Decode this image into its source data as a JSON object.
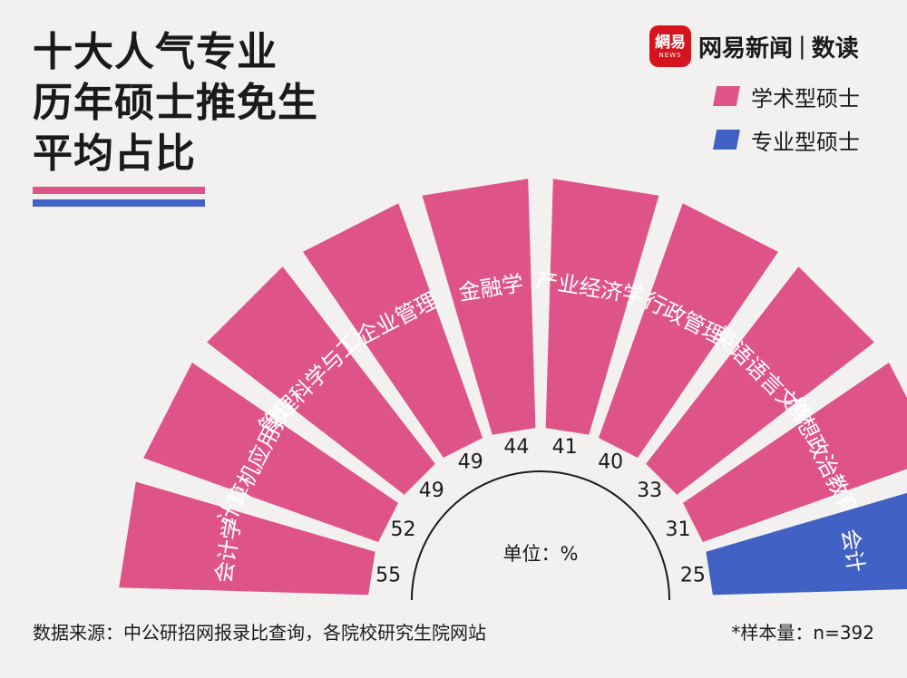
{
  "title_lines": [
    "十大人气专业",
    "历年硕士推免生",
    "平均占比"
  ],
  "brand": {
    "mark_main": "網易",
    "mark_sub": "NEWS",
    "name": "网易新闻",
    "separator": "|",
    "column": "数读"
  },
  "colors": {
    "academic": "#de5489",
    "professional": "#4161c4",
    "background": "#f2f1ef",
    "text": "#1a1a1a"
  },
  "legend": [
    {
      "label": "学术型硕士",
      "color": "#de5489"
    },
    {
      "label": "专业型硕士",
      "color": "#4161c4"
    }
  ],
  "chart_data": {
    "type": "bar",
    "layout": "radial half-circle",
    "unit_label": "单位：%",
    "categories": [
      "会计学",
      "计算机应用技术",
      "管理科学与工程",
      "企业管理",
      "金融学",
      "产业经济学",
      "行政管理",
      "英语语言文学",
      "思想政治教育",
      "会计"
    ],
    "values": [
      55,
      52,
      49,
      49,
      44,
      41,
      40,
      33,
      31,
      25
    ],
    "degree_type": [
      "学术型硕士",
      "学术型硕士",
      "学术型硕士",
      "学术型硕士",
      "学术型硕士",
      "学术型硕士",
      "学术型硕士",
      "学术型硕士",
      "学术型硕士",
      "专业型硕士"
    ],
    "series": [
      {
        "name": "学术型硕士",
        "color": "#de5489"
      },
      {
        "name": "专业型硕士",
        "color": "#4161c4"
      }
    ]
  },
  "footer": {
    "source": "数据来源：中公研招网报录比查询，各院校研究生院网站",
    "note": "*样本量：n=392"
  }
}
